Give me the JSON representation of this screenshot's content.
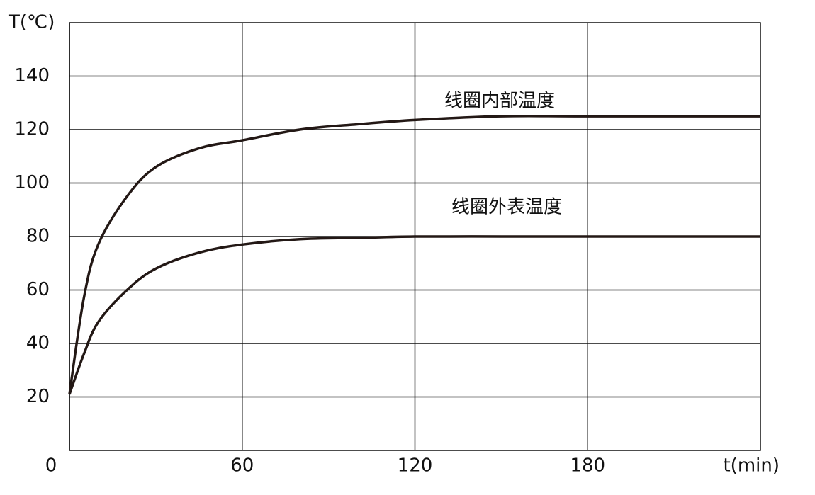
{
  "chart_data": {
    "type": "line",
    "x_label": "t(min)",
    "y_label": "T(℃)",
    "x": [
      0,
      5,
      10,
      20,
      30,
      45,
      60,
      80,
      100,
      120,
      150,
      180,
      240
    ],
    "series": [
      {
        "name": "线圈内部温度",
        "color": "#231815",
        "values": [
          21,
          57,
          77,
          95,
          106,
          113,
          116,
          120,
          122,
          123.6,
          125,
          125,
          125
        ]
      },
      {
        "name": "线圈外表温度",
        "color": "#231815",
        "values": [
          21,
          36,
          48,
          60,
          68,
          74,
          77,
          79,
          79.5,
          80,
          80,
          80,
          80
        ]
      }
    ],
    "xlim": [
      0,
      240
    ],
    "xticks": [
      0,
      60,
      120,
      180
    ],
    "ylim": [
      0,
      160
    ],
    "yticks": [
      20,
      40,
      60,
      80,
      100,
      120,
      140
    ],
    "grid": true
  }
}
